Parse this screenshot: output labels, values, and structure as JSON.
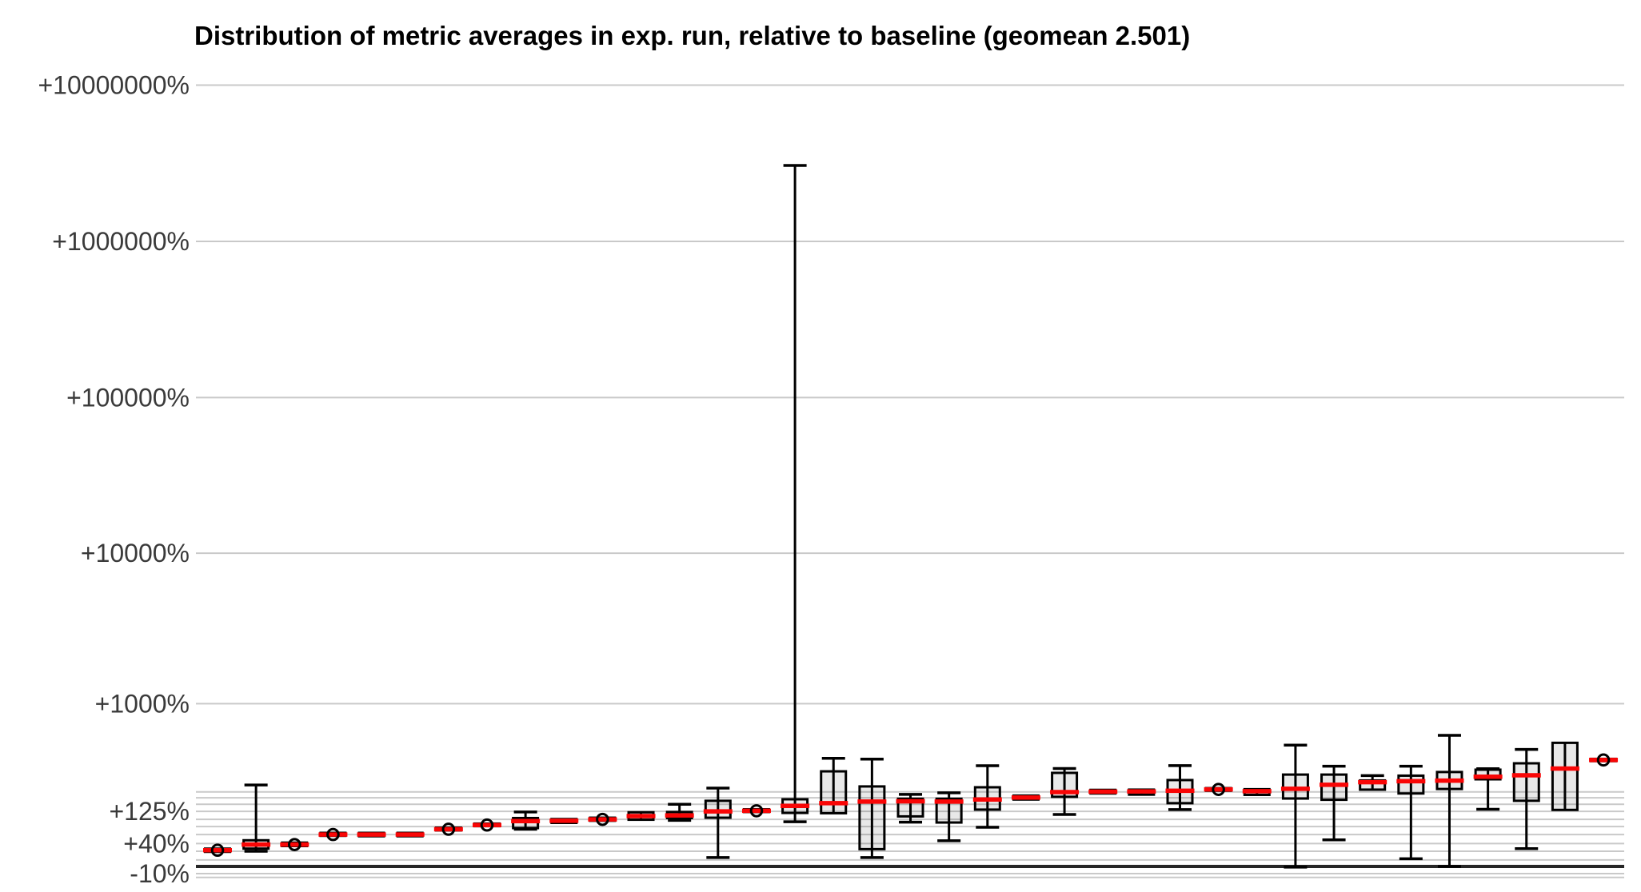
{
  "chart": {
    "title": "Distribution of metric averages in exp. run, relative to baseline (geomean 2.501)"
  },
  "chart_data": {
    "type": "boxplot",
    "title": "Distribution of metric averages in exp. run, relative to baseline (geomean 2.501)",
    "geomean_ratio": 2.501,
    "y_axis": {
      "scale": "log-ratio",
      "unit": "percent change vs baseline",
      "grid": true,
      "ticks": [
        {
          "pct": 10000000,
          "label": "+10000000%"
        },
        {
          "pct": 1000000,
          "label": "+1000000%"
        },
        {
          "pct": 100000,
          "label": "+100000%"
        },
        {
          "pct": 10000,
          "label": "+10000%"
        },
        {
          "pct": 1000,
          "label": "+1000%"
        },
        {
          "pct": 200
        },
        {
          "pct": 175
        },
        {
          "pct": 150
        },
        {
          "pct": 125,
          "label": "+125%"
        },
        {
          "pct": 100
        },
        {
          "pct": 80
        },
        {
          "pct": 60
        },
        {
          "pct": 40,
          "label": "+40%"
        },
        {
          "pct": 25
        },
        {
          "pct": 10
        },
        {
          "pct": 0,
          "emphasis": true
        },
        {
          "pct": -10,
          "label": "-10%"
        },
        {
          "pct": -15
        }
      ]
    },
    "boxes": [
      {
        "med": 27,
        "q1": 24,
        "q3": 30,
        "lo": null,
        "hi": null,
        "circle": true
      },
      {
        "med": 38,
        "q1": 30,
        "q3": 47,
        "lo": 25,
        "hi": 232,
        "circle": false
      },
      {
        "med": 38,
        "q1": 35,
        "q3": 42,
        "lo": null,
        "hi": null,
        "circle": true
      },
      {
        "med": 60,
        "q1": 57,
        "q3": 64,
        "lo": null,
        "hi": null,
        "circle": true
      },
      {
        "med": 60,
        "q1": 56,
        "q3": 64,
        "lo": null,
        "hi": null,
        "circle": false
      },
      {
        "med": 60,
        "q1": 56,
        "q3": 64,
        "lo": null,
        "hi": null,
        "circle": false
      },
      {
        "med": 73,
        "q1": 70,
        "q3": 77,
        "lo": null,
        "hi": null,
        "circle": true
      },
      {
        "med": 84,
        "q1": 81,
        "q3": 88,
        "lo": null,
        "hi": null,
        "circle": true
      },
      {
        "med": 95,
        "q1": 76,
        "q3": 104,
        "lo": 73,
        "hi": 123,
        "circle": false
      },
      {
        "med": 96,
        "q1": 90,
        "q3": 101,
        "lo": null,
        "hi": null,
        "circle": false
      },
      {
        "med": 100,
        "q1": 96,
        "q3": 105,
        "lo": null,
        "hi": null,
        "circle": true
      },
      {
        "med": 110,
        "q1": 99,
        "q3": 122,
        "lo": null,
        "hi": null,
        "circle": false
      },
      {
        "med": 112,
        "q1": 104,
        "q3": 123,
        "lo": 97,
        "hi": 150,
        "circle": false
      },
      {
        "med": 125,
        "q1": 105,
        "q3": 163,
        "lo": 14,
        "hi": 217,
        "circle": false
      },
      {
        "med": 127,
        "q1": 123,
        "q3": 132,
        "lo": null,
        "hi": null,
        "circle": true
      },
      {
        "med": 144,
        "q1": 120,
        "q3": 169,
        "lo": 93,
        "hi": 3060000,
        "circle": false
      },
      {
        "med": 154,
        "q1": 119,
        "q3": 306,
        "lo": null,
        "hi": 392,
        "circle": false
      },
      {
        "med": 160,
        "q1": 29,
        "q3": 225,
        "lo": 14,
        "hi": 386,
        "circle": false
      },
      {
        "med": 161,
        "q1": 109,
        "q3": 171,
        "lo": 92,
        "hi": 189,
        "circle": false
      },
      {
        "med": 160,
        "q1": 91,
        "q3": 171,
        "lo": 46,
        "hi": 196,
        "circle": false
      },
      {
        "med": 168,
        "q1": 131,
        "q3": 221,
        "lo": 78,
        "hi": 341,
        "circle": false
      },
      {
        "med": 176,
        "q1": 168,
        "q3": 184,
        "lo": null,
        "hi": null,
        "circle": false
      },
      {
        "med": 199,
        "q1": 179,
        "q3": 297,
        "lo": 115,
        "hi": 323,
        "circle": false
      },
      {
        "med": 201,
        "q1": 193,
        "q3": 209,
        "lo": null,
        "hi": null,
        "circle": false
      },
      {
        "med": 202,
        "q1": 188,
        "q3": 210,
        "lo": null,
        "hi": null,
        "circle": false
      },
      {
        "med": 205,
        "q1": 154,
        "q3": 257,
        "lo": 131,
        "hi": 342,
        "circle": false
      },
      {
        "med": 211,
        "q1": 205,
        "q3": 217,
        "lo": null,
        "hi": null,
        "circle": true
      },
      {
        "med": 203,
        "q1": 187,
        "q3": 212,
        "lo": null,
        "hi": null,
        "circle": false
      },
      {
        "med": 214,
        "q1": 172,
        "q3": 287,
        "lo": -1,
        "hi": 497,
        "circle": false
      },
      {
        "med": 233,
        "q1": 167,
        "q3": 287,
        "lo": 48,
        "hi": 338,
        "circle": false
      },
      {
        "med": 246,
        "q1": 210,
        "q3": 255,
        "lo": null,
        "hi": 281,
        "circle": false
      },
      {
        "med": 251,
        "q1": 193,
        "q3": 281,
        "lo": 12,
        "hi": 338,
        "circle": false
      },
      {
        "med": 254,
        "q1": 213,
        "q3": 302,
        "lo": 0,
        "hi": 590,
        "circle": false
      },
      {
        "med": 275,
        "q1": 261,
        "q3": 316,
        "lo": 132,
        "hi": 322,
        "circle": false
      },
      {
        "med": 283,
        "q1": 163,
        "q3": 357,
        "lo": 30,
        "hi": 461,
        "circle": false
      },
      {
        "med": 323,
        "q1": 130,
        "q3": 518,
        "lo": null,
        "hi": null,
        "circle": false
      },
      {
        "med": 380,
        "q1": 372,
        "q3": 388,
        "lo": null,
        "hi": null,
        "circle": true
      }
    ],
    "colors": {
      "median": "#f90606",
      "box_fill": "rgba(0,0,0,0.09)",
      "box_border": "#000000",
      "gridline": "#c9c9c9",
      "baseline": "#262626",
      "label": "#3a3a3a"
    }
  }
}
